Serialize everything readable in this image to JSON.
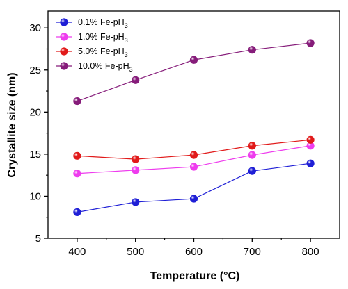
{
  "chart_data": {
    "type": "line",
    "title": "",
    "xlabel": "Temperature (°C)",
    "ylabel": "Crystallite size (nm)",
    "x": [
      400,
      500,
      600,
      700,
      800
    ],
    "xlim": [
      350,
      850
    ],
    "ylim": [
      5,
      32
    ],
    "xticks": [
      400,
      500,
      600,
      700,
      800
    ],
    "yticks": [
      5,
      10,
      15,
      20,
      25,
      30
    ],
    "grid": false,
    "legend_position": "top-left",
    "series": [
      {
        "name": "0.1% Fe-pH",
        "subscript": "3",
        "color": "#1f1fd6",
        "values": [
          8.1,
          9.3,
          9.7,
          13.0,
          13.9
        ]
      },
      {
        "name": "1.0% Fe-pH",
        "subscript": "3",
        "color": "#ee3cee",
        "values": [
          12.7,
          13.1,
          13.5,
          14.9,
          16.0
        ]
      },
      {
        "name": "5.0% Fe-pH",
        "subscript": "3",
        "color": "#e11a1a",
        "values": [
          14.8,
          14.4,
          14.9,
          16.0,
          16.7
        ]
      },
      {
        "name": "10.0% Fe-pH",
        "subscript": "3",
        "color": "#861c7a",
        "values": [
          21.3,
          23.8,
          26.2,
          27.4,
          28.2
        ]
      }
    ]
  }
}
